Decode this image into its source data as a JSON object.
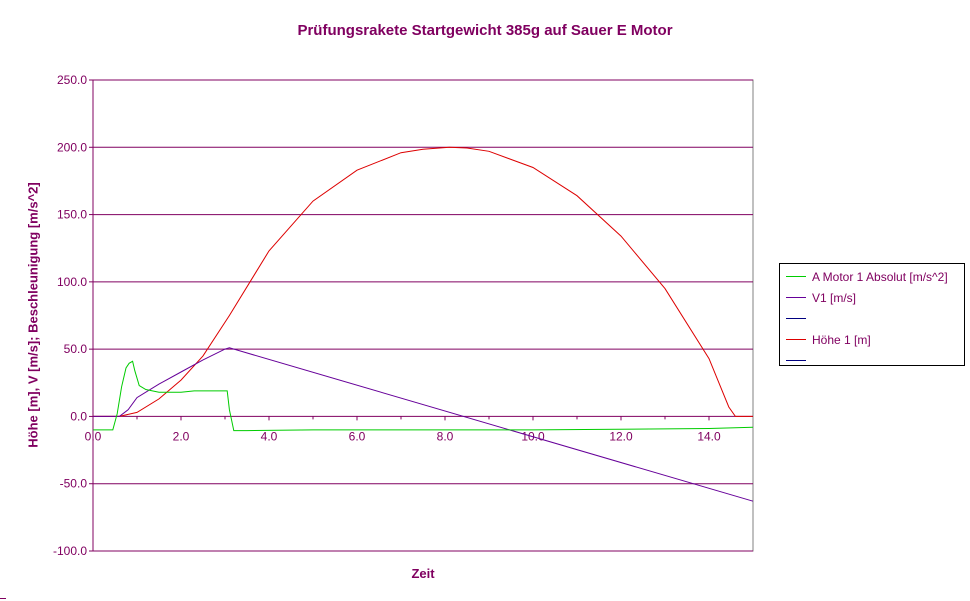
{
  "chart_data": {
    "type": "line",
    "title": "Prüfungsrakete Startgewicht 385g auf Sauer E Motor",
    "xlabel": "Zeit",
    "ylabel": "Höhe [m], V [m/s]; Beschleunigung [m/s^2]",
    "xlim": [
      0,
      15
    ],
    "ylim": [
      -100,
      250
    ],
    "x_ticks": [
      "0.0",
      "2.0",
      "4.0",
      "6.0",
      "8.0",
      "10.0",
      "12.0",
      "14.0"
    ],
    "y_ticks": [
      "250.0",
      "200.0",
      "150.0",
      "100.0",
      "50.0",
      "0.0",
      "-50.0",
      "-100.0"
    ],
    "grid": "horizontal",
    "legend_position": "right",
    "series": [
      {
        "name": "A Motor 1 Absolut [m/s^2]",
        "color": "#00cc00",
        "x": [
          0,
          0.45,
          0.55,
          0.65,
          0.75,
          0.82,
          0.9,
          0.95,
          1.05,
          1.2,
          1.5,
          2.0,
          2.3,
          2.6,
          3.05,
          3.1,
          3.2,
          3.5,
          5,
          10,
          14,
          15
        ],
        "y": [
          -10,
          -10,
          2,
          22,
          36,
          39.5,
          41,
          34,
          23,
          20,
          18,
          18,
          19,
          19,
          19,
          5,
          -10.5,
          -10.5,
          -10,
          -10,
          -9,
          -8
        ]
      },
      {
        "name": "V1 [m/s]",
        "color": "#660099",
        "x": [
          0,
          0.6,
          0.8,
          1.0,
          1.5,
          2.0,
          2.5,
          3.0,
          3.1,
          15
        ],
        "y": [
          0,
          0,
          5,
          14,
          24,
          33,
          42,
          50,
          51,
          -63
        ]
      },
      {
        "name": "",
        "color": "#000080",
        "x": [],
        "y": []
      },
      {
        "name": "Höhe 1 [m]",
        "color": "#dd0000",
        "x": [
          0,
          0.6,
          1.0,
          1.5,
          2.0,
          2.5,
          3.1,
          4.0,
          5.0,
          6.0,
          7.0,
          7.5,
          8.1,
          8.5,
          9.0,
          10.0,
          11.0,
          12.0,
          13.0,
          14.0,
          14.45,
          14.6,
          15
        ],
        "y": [
          0,
          0,
          3,
          13,
          27,
          45,
          75,
          123,
          160,
          183,
          196,
          198.5,
          200,
          199.5,
          197,
          185,
          164,
          134,
          95,
          43,
          7,
          0,
          0
        ]
      },
      {
        "name": "",
        "color": "#000080",
        "x": [],
        "y": []
      }
    ]
  }
}
